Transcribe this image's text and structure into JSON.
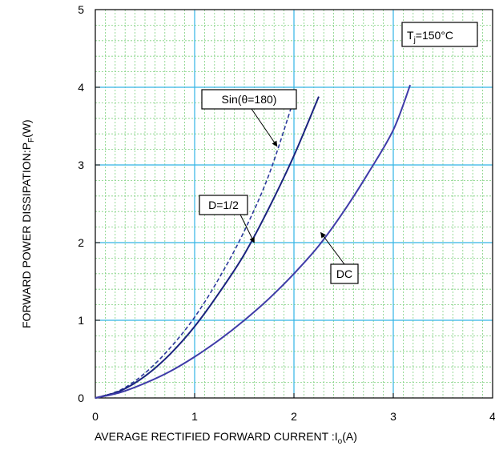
{
  "chart_data": {
    "type": "line",
    "xlabel": "AVERAGE RECTIFIED FORWARD CURRENT :",
    "xlabel_symbol": "I",
    "xlabel_sub": "o",
    "xlabel_unit": "(A)",
    "ylabel": "FORWARD POWER DISSIPATION:",
    "ylabel_symbol": "P",
    "ylabel_sub": "F",
    "ylabel_unit": "(W)",
    "xlim": [
      0,
      4
    ],
    "ylim": [
      0,
      5
    ],
    "xticks": [
      0,
      1,
      2,
      3,
      4
    ],
    "yticks": [
      0,
      1,
      2,
      3,
      4,
      5
    ],
    "grid": true,
    "condition": {
      "prefix": "T",
      "sub": "j",
      "text": "=150°C"
    },
    "series": [
      {
        "name": "Sin(θ=180)",
        "style": "dashed",
        "color": "#2c3a9c",
        "points": [
          [
            0,
            0
          ],
          [
            0.25,
            0.1
          ],
          [
            0.5,
            0.32
          ],
          [
            0.75,
            0.64
          ],
          [
            1.0,
            1.04
          ],
          [
            1.25,
            1.55
          ],
          [
            1.5,
            2.15
          ],
          [
            1.75,
            2.88
          ],
          [
            2.0,
            3.85
          ]
        ]
      },
      {
        "name": "D=1/2",
        "style": "solid",
        "color": "#1a237e",
        "points": [
          [
            0,
            0
          ],
          [
            0.25,
            0.09
          ],
          [
            0.5,
            0.28
          ],
          [
            0.75,
            0.56
          ],
          [
            1.0,
            0.92
          ],
          [
            1.25,
            1.36
          ],
          [
            1.5,
            1.85
          ],
          [
            1.75,
            2.45
          ],
          [
            2.0,
            3.12
          ],
          [
            2.25,
            3.88
          ]
        ]
      },
      {
        "name": "DC",
        "style": "solid",
        "color": "#3f3ca8",
        "points": [
          [
            0,
            0
          ],
          [
            0.25,
            0.07
          ],
          [
            0.5,
            0.19
          ],
          [
            0.75,
            0.34
          ],
          [
            1.0,
            0.53
          ],
          [
            1.25,
            0.75
          ],
          [
            1.5,
            1.0
          ],
          [
            1.75,
            1.28
          ],
          [
            2.0,
            1.6
          ],
          [
            2.25,
            1.96
          ],
          [
            2.5,
            2.4
          ],
          [
            2.75,
            2.9
          ],
          [
            3.0,
            3.45
          ],
          [
            3.17,
            4.03
          ]
        ]
      }
    ],
    "annotations": [
      {
        "text": "Sin(θ=180)",
        "target": [
          1.83,
          3.24
        ]
      },
      {
        "text": "D=1/2",
        "target": [
          1.6,
          2.0
        ]
      },
      {
        "text": "DC",
        "target": [
          2.27,
          2.13
        ]
      }
    ]
  },
  "colors": {
    "grid_major": "#33b5e5",
    "grid_minor": "#7fd07f",
    "axis": "#000000"
  }
}
